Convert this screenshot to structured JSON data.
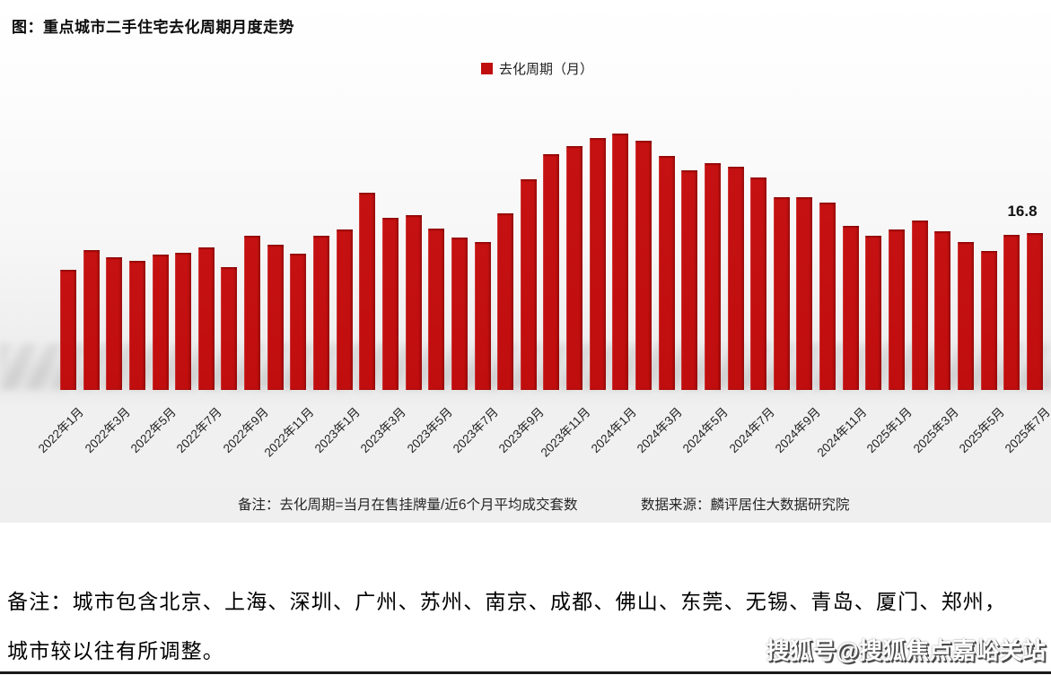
{
  "chart_data": {
    "type": "bar",
    "title": "图：重点城市二手住宅去化周期月度走势",
    "series_name": "去化周期（月）",
    "x": [
      "2022年1月",
      "2022年2月",
      "2022年3月",
      "2022年4月",
      "2022年5月",
      "2022年6月",
      "2022年7月",
      "2022年8月",
      "2022年9月",
      "2022年10月",
      "2022年11月",
      "2022年12月",
      "2023年1月",
      "2023年2月",
      "2023年3月",
      "2023年4月",
      "2023年5月",
      "2023年6月",
      "2023年7月",
      "2023年8月",
      "2023年9月",
      "2023年10月",
      "2023年11月",
      "2023年12月",
      "2024年1月",
      "2024年2月",
      "2024年3月",
      "2024年4月",
      "2024年5月",
      "2024年6月",
      "2024年7月",
      "2024年8月",
      "2024年9月",
      "2024年10月",
      "2024年11月",
      "2024年12月",
      "2025年1月",
      "2025年2月",
      "2025年3月",
      "2025年4月",
      "2025年5月",
      "2025年6月",
      "2025年7月"
    ],
    "values": [
      12.9,
      15.0,
      14.2,
      13.8,
      14.5,
      14.7,
      15.3,
      13.1,
      16.5,
      15.5,
      14.6,
      16.5,
      17.2,
      21.1,
      18.4,
      18.7,
      17.3,
      16.3,
      15.8,
      18.9,
      22.6,
      25.2,
      26.1,
      27.0,
      27.4,
      26.7,
      25.0,
      23.5,
      24.3,
      23.9,
      22.7,
      20.6,
      20.6,
      20.1,
      17.6,
      16.5,
      17.2,
      18.1,
      17.0,
      15.8,
      14.9,
      16.6,
      16.8
    ],
    "x_tick_labels": [
      "2022年1月",
      "2022年3月",
      "2022年5月",
      "2022年7月",
      "2022年9月",
      "2022年11月",
      "2023年1月",
      "2023年3月",
      "2023年5月",
      "2023年7月",
      "2023年9月",
      "2023年11月",
      "2024年1月",
      "2024年3月",
      "2024年5月",
      "2024年7月",
      "2024年9月",
      "2024年11月",
      "2025年1月",
      "2025年3月",
      "2025年5月",
      "2025年7月"
    ],
    "ylim": [
      0,
      28.5
    ],
    "grid": false,
    "legend_position": "top-center",
    "bar_color": "#c00d0d",
    "data_label": {
      "month": "2025年7月",
      "value": "16.8"
    }
  },
  "footnote": {
    "note": "备注：去化周期=当月在售挂牌量/近6个月平均成交套数",
    "source": "数据来源：麟评居住大数据研究院"
  },
  "bottom_note": {
    "line1": "备注：城市包含北京、上海、深圳、广州、苏州、南京、成都、佛山、东莞、无锡、青岛、厦门、郑州，",
    "line2": "城市较以往有所调整。"
  },
  "watermark": {
    "text": "搜狐号@搜狐焦点嘉峪关站"
  }
}
